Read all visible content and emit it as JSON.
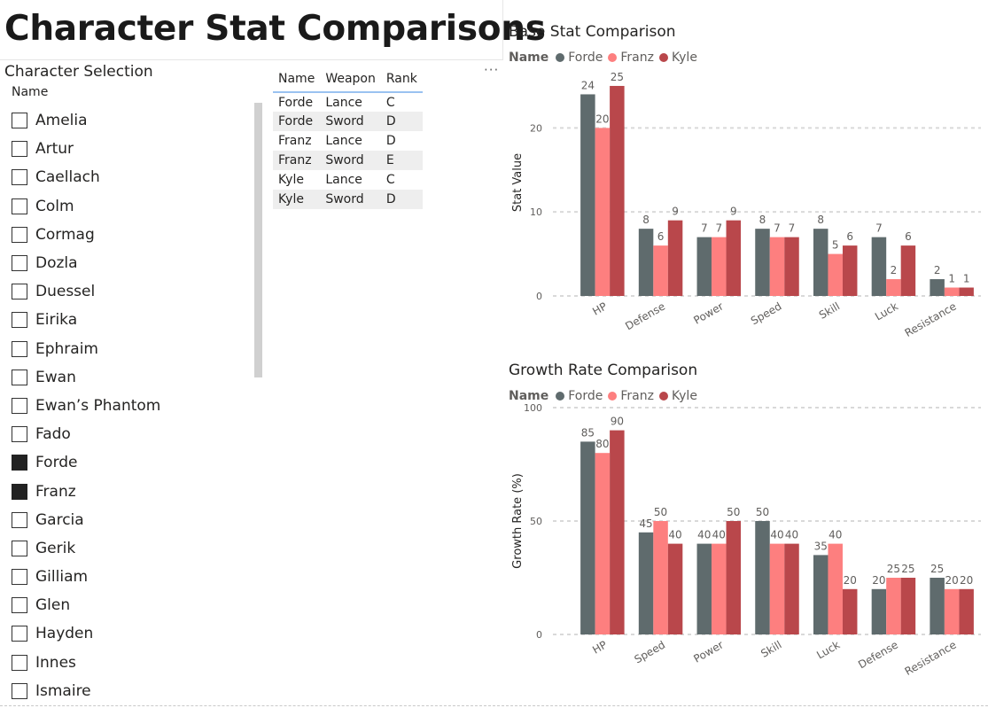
{
  "page": {
    "title": "Character Stat Comparisons"
  },
  "slicer": {
    "title": "Character Selection",
    "header": "Name",
    "items": [
      {
        "label": "Amelia",
        "checked": false
      },
      {
        "label": "Artur",
        "checked": false
      },
      {
        "label": "Caellach",
        "checked": false
      },
      {
        "label": "Colm",
        "checked": false
      },
      {
        "label": "Cormag",
        "checked": false
      },
      {
        "label": "Dozla",
        "checked": false
      },
      {
        "label": "Duessel",
        "checked": false
      },
      {
        "label": "Eirika",
        "checked": false
      },
      {
        "label": "Ephraim",
        "checked": false
      },
      {
        "label": "Ewan",
        "checked": false
      },
      {
        "label": "Ewan’s Phantom",
        "checked": false
      },
      {
        "label": "Fado",
        "checked": false
      },
      {
        "label": "Forde",
        "checked": true
      },
      {
        "label": "Franz",
        "checked": true
      },
      {
        "label": "Garcia",
        "checked": false
      },
      {
        "label": "Gerik",
        "checked": false
      },
      {
        "label": "Gilliam",
        "checked": false
      },
      {
        "label": "Glen",
        "checked": false
      },
      {
        "label": "Hayden",
        "checked": false
      },
      {
        "label": "Innes",
        "checked": false
      },
      {
        "label": "Ismaire",
        "checked": false
      }
    ]
  },
  "table": {
    "columns": [
      "Name",
      "Weapon",
      "Rank"
    ],
    "rows": [
      [
        "Forde",
        "Lance",
        "C"
      ],
      [
        "Forde",
        "Sword",
        "D"
      ],
      [
        "Franz",
        "Lance",
        "D"
      ],
      [
        "Franz",
        "Sword",
        "E"
      ],
      [
        "Kyle",
        "Lance",
        "C"
      ],
      [
        "Kyle",
        "Sword",
        "D"
      ]
    ],
    "more_options": "···"
  },
  "colors": {
    "Forde": "#5f6b6d",
    "Franz": "#fd7f7f",
    "Kyle": "#b9474b"
  },
  "chart_data": [
    {
      "type": "bar",
      "title": "Base Stat Comparison",
      "legend_title": "Name",
      "xlabel": "",
      "ylabel": "Stat Value",
      "ylim": [
        0,
        27
      ],
      "yticks": [
        0,
        10,
        20
      ],
      "categories": [
        "HP",
        "Defense",
        "Power",
        "Speed",
        "Skill",
        "Luck",
        "Resistance"
      ],
      "series": [
        {
          "name": "Forde",
          "values": [
            24,
            8,
            7,
            8,
            8,
            7,
            2
          ]
        },
        {
          "name": "Franz",
          "values": [
            20,
            6,
            7,
            7,
            5,
            2,
            1
          ]
        },
        {
          "name": "Kyle",
          "values": [
            25,
            9,
            9,
            7,
            6,
            6,
            1
          ]
        }
      ]
    },
    {
      "type": "bar",
      "title": "Growth Rate Comparison",
      "legend_title": "Name",
      "xlabel": "",
      "ylabel": "Growth Rate (%)",
      "ylim": [
        0,
        100
      ],
      "yticks": [
        0,
        50,
        100
      ],
      "categories": [
        "HP",
        "Speed",
        "Power",
        "Skill",
        "Luck",
        "Defense",
        "Resistance"
      ],
      "series": [
        {
          "name": "Forde",
          "values": [
            85,
            45,
            40,
            50,
            35,
            20,
            25
          ]
        },
        {
          "name": "Franz",
          "values": [
            80,
            50,
            40,
            40,
            40,
            25,
            20
          ]
        },
        {
          "name": "Kyle",
          "values": [
            90,
            40,
            50,
            40,
            20,
            25,
            20
          ]
        }
      ]
    }
  ]
}
